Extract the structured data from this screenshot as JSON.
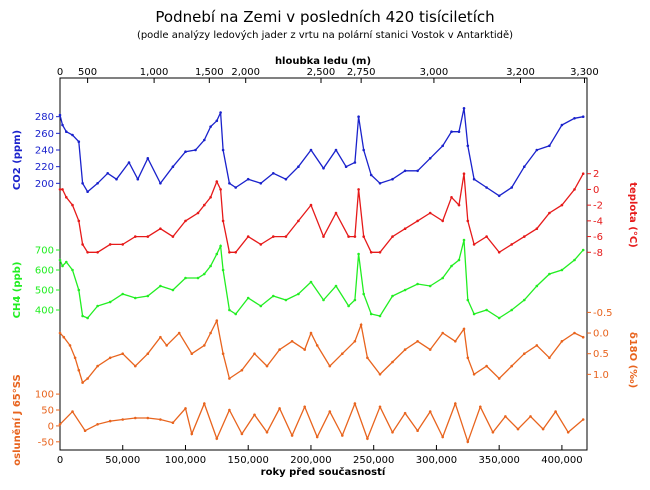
{
  "chart_data": {
    "type": "line",
    "title": "Podnebí na Zemi v posledních 420 tisíciletích",
    "subtitle": "(podle analýzy ledových jader z vrtu na polární stanici Vostok v Antarktidě)",
    "top_axis": {
      "label": "hloubka ledu (m)",
      "ticks": [
        "0",
        "500",
        "1,000",
        "1,500",
        "2,000",
        "2,500",
        "2,750",
        "3,000",
        "3,200",
        "3,300"
      ],
      "tick_ages": [
        0,
        22000,
        75000,
        119000,
        148000,
        208000,
        240000,
        298000,
        367000,
        418000
      ]
    },
    "x": {
      "label": "roky před současností",
      "ticks": [
        0,
        50000,
        100000,
        150000,
        200000,
        250000,
        300000,
        350000,
        400000
      ],
      "tick_labels": [
        "0",
        "50,000",
        "100,000",
        "150,000",
        "200,000",
        "250,000",
        "300,000",
        "350,000",
        "400,000"
      ],
      "range": [
        0,
        420000
      ]
    },
    "series": [
      {
        "name": "CO2 (ppm)",
        "color": "#1a22cc",
        "axis": "left",
        "ticks": [
          200,
          220,
          240,
          260,
          280
        ],
        "range": [
          180,
          300
        ],
        "x": [
          0,
          2000,
          5000,
          10000,
          15000,
          18000,
          22000,
          30000,
          38000,
          45000,
          55000,
          62000,
          70000,
          80000,
          90000,
          100000,
          108000,
          115000,
          120000,
          125000,
          128000,
          130000,
          135000,
          140000,
          150000,
          160000,
          170000,
          180000,
          190000,
          200000,
          210000,
          220000,
          228000,
          235000,
          238000,
          242000,
          248000,
          255000,
          265000,
          275000,
          285000,
          295000,
          305000,
          312000,
          318000,
          322000,
          325000,
          330000,
          340000,
          350000,
          360000,
          370000,
          380000,
          390000,
          400000,
          410000,
          417000
        ],
        "values": [
          282,
          270,
          262,
          258,
          250,
          200,
          190,
          200,
          212,
          205,
          225,
          205,
          230,
          200,
          220,
          238,
          240,
          252,
          268,
          275,
          285,
          240,
          200,
          195,
          205,
          200,
          212,
          205,
          220,
          240,
          218,
          240,
          220,
          225,
          280,
          240,
          210,
          200,
          205,
          215,
          215,
          230,
          245,
          262,
          262,
          290,
          245,
          205,
          195,
          185,
          195,
          220,
          240,
          245,
          270,
          278,
          280
        ]
      },
      {
        "name": "teplota (°C)",
        "color": "#e61a1a",
        "axis": "right",
        "ticks": [
          2,
          0,
          -2,
          -4,
          -6,
          -8
        ],
        "range": [
          -10,
          4
        ],
        "x": [
          0,
          2000,
          5000,
          10000,
          15000,
          18000,
          22000,
          30000,
          40000,
          50000,
          60000,
          70000,
          80000,
          90000,
          100000,
          110000,
          115000,
          120000,
          125000,
          128000,
          130000,
          135000,
          140000,
          150000,
          160000,
          170000,
          180000,
          190000,
          200000,
          210000,
          220000,
          230000,
          235000,
          238000,
          242000,
          248000,
          255000,
          265000,
          275000,
          285000,
          295000,
          305000,
          312000,
          318000,
          322000,
          325000,
          330000,
          340000,
          350000,
          360000,
          370000,
          380000,
          390000,
          400000,
          410000,
          417000
        ],
        "values": [
          0,
          0,
          -1,
          -2,
          -4,
          -7,
          -8,
          -8,
          -7,
          -7,
          -6,
          -6,
          -5,
          -6,
          -4,
          -3,
          -2,
          -1,
          1,
          0,
          -4,
          -8,
          -8,
          -6,
          -7,
          -6,
          -6,
          -4,
          -2,
          -6,
          -3,
          -6,
          -6,
          0,
          -6,
          -8,
          -8,
          -6,
          -5,
          -4,
          -3,
          -4,
          -1,
          -2,
          2,
          -4,
          -7,
          -6,
          -8,
          -7,
          -6,
          -5,
          -3,
          -2,
          0,
          2
        ]
      },
      {
        "name": "CH4 (ppb)",
        "color": "#22ee22",
        "axis": "left",
        "ticks": [
          400,
          500,
          600,
          700
        ],
        "range": [
          300,
          800
        ],
        "x": [
          0,
          2000,
          5000,
          10000,
          15000,
          18000,
          22000,
          30000,
          40000,
          50000,
          60000,
          70000,
          80000,
          90000,
          100000,
          110000,
          115000,
          120000,
          125000,
          128000,
          130000,
          135000,
          140000,
          150000,
          160000,
          170000,
          180000,
          190000,
          200000,
          210000,
          220000,
          230000,
          235000,
          238000,
          242000,
          248000,
          255000,
          265000,
          275000,
          285000,
          295000,
          305000,
          312000,
          318000,
          322000,
          325000,
          330000,
          340000,
          350000,
          360000,
          370000,
          380000,
          390000,
          400000,
          410000,
          417000
        ],
        "values": [
          650,
          620,
          640,
          600,
          500,
          370,
          360,
          420,
          440,
          480,
          460,
          470,
          520,
          500,
          560,
          560,
          580,
          620,
          680,
          720,
          600,
          400,
          380,
          460,
          420,
          470,
          450,
          480,
          540,
          450,
          520,
          420,
          450,
          680,
          480,
          380,
          370,
          470,
          500,
          530,
          520,
          560,
          620,
          650,
          750,
          450,
          380,
          400,
          360,
          400,
          450,
          520,
          580,
          600,
          650,
          700
        ]
      },
      {
        "name": "δ18O (‰)",
        "color": "#e8641e",
        "axis": "right",
        "ticks": [
          -0.5,
          0.0,
          0.5,
          1.0
        ],
        "range": [
          1.5,
          -0.8
        ],
        "x": [
          0,
          3000,
          8000,
          12000,
          15000,
          18000,
          22000,
          30000,
          40000,
          50000,
          60000,
          70000,
          80000,
          85000,
          95000,
          105000,
          115000,
          120000,
          125000,
          130000,
          135000,
          145000,
          155000,
          165000,
          175000,
          185000,
          195000,
          200000,
          205000,
          215000,
          225000,
          235000,
          240000,
          245000,
          255000,
          265000,
          275000,
          285000,
          295000,
          305000,
          315000,
          322000,
          325000,
          330000,
          340000,
          350000,
          360000,
          370000,
          380000,
          390000,
          400000,
          410000,
          417000
        ],
        "values": [
          0.0,
          0.1,
          0.3,
          0.6,
          0.9,
          1.2,
          1.1,
          0.8,
          0.6,
          0.5,
          0.8,
          0.5,
          0.1,
          0.3,
          0.0,
          0.5,
          0.3,
          0.0,
          -0.3,
          0.5,
          1.1,
          0.9,
          0.5,
          0.8,
          0.4,
          0.2,
          0.4,
          0.0,
          0.3,
          0.8,
          0.5,
          0.2,
          -0.2,
          0.6,
          1.0,
          0.7,
          0.4,
          0.2,
          0.4,
          0.0,
          0.2,
          -0.1,
          0.6,
          1.0,
          0.8,
          1.1,
          0.8,
          0.5,
          0.3,
          0.6,
          0.2,
          0.0,
          0.1
        ]
      },
      {
        "name": "oslunění J 65°SS",
        "color": "#e8641e",
        "axis": "left",
        "ticks": [
          -50,
          0,
          50,
          100
        ],
        "range": [
          -60,
          160
        ],
        "x": [
          0,
          10000,
          20000,
          30000,
          40000,
          50000,
          60000,
          70000,
          80000,
          90000,
          100000,
          105000,
          115000,
          125000,
          135000,
          145000,
          155000,
          165000,
          175000,
          185000,
          195000,
          205000,
          215000,
          225000,
          235000,
          245000,
          255000,
          265000,
          275000,
          285000,
          295000,
          305000,
          315000,
          325000,
          335000,
          345000,
          355000,
          365000,
          375000,
          385000,
          395000,
          405000,
          417000
        ],
        "values": [
          5,
          45,
          -15,
          5,
          15,
          20,
          25,
          25,
          20,
          10,
          55,
          -25,
          70,
          -40,
          50,
          -25,
          35,
          -20,
          55,
          -30,
          60,
          -35,
          45,
          -30,
          70,
          -40,
          60,
          -20,
          40,
          -15,
          45,
          -35,
          70,
          -50,
          60,
          -20,
          30,
          -10,
          30,
          -10,
          45,
          -20,
          20
        ]
      }
    ]
  }
}
